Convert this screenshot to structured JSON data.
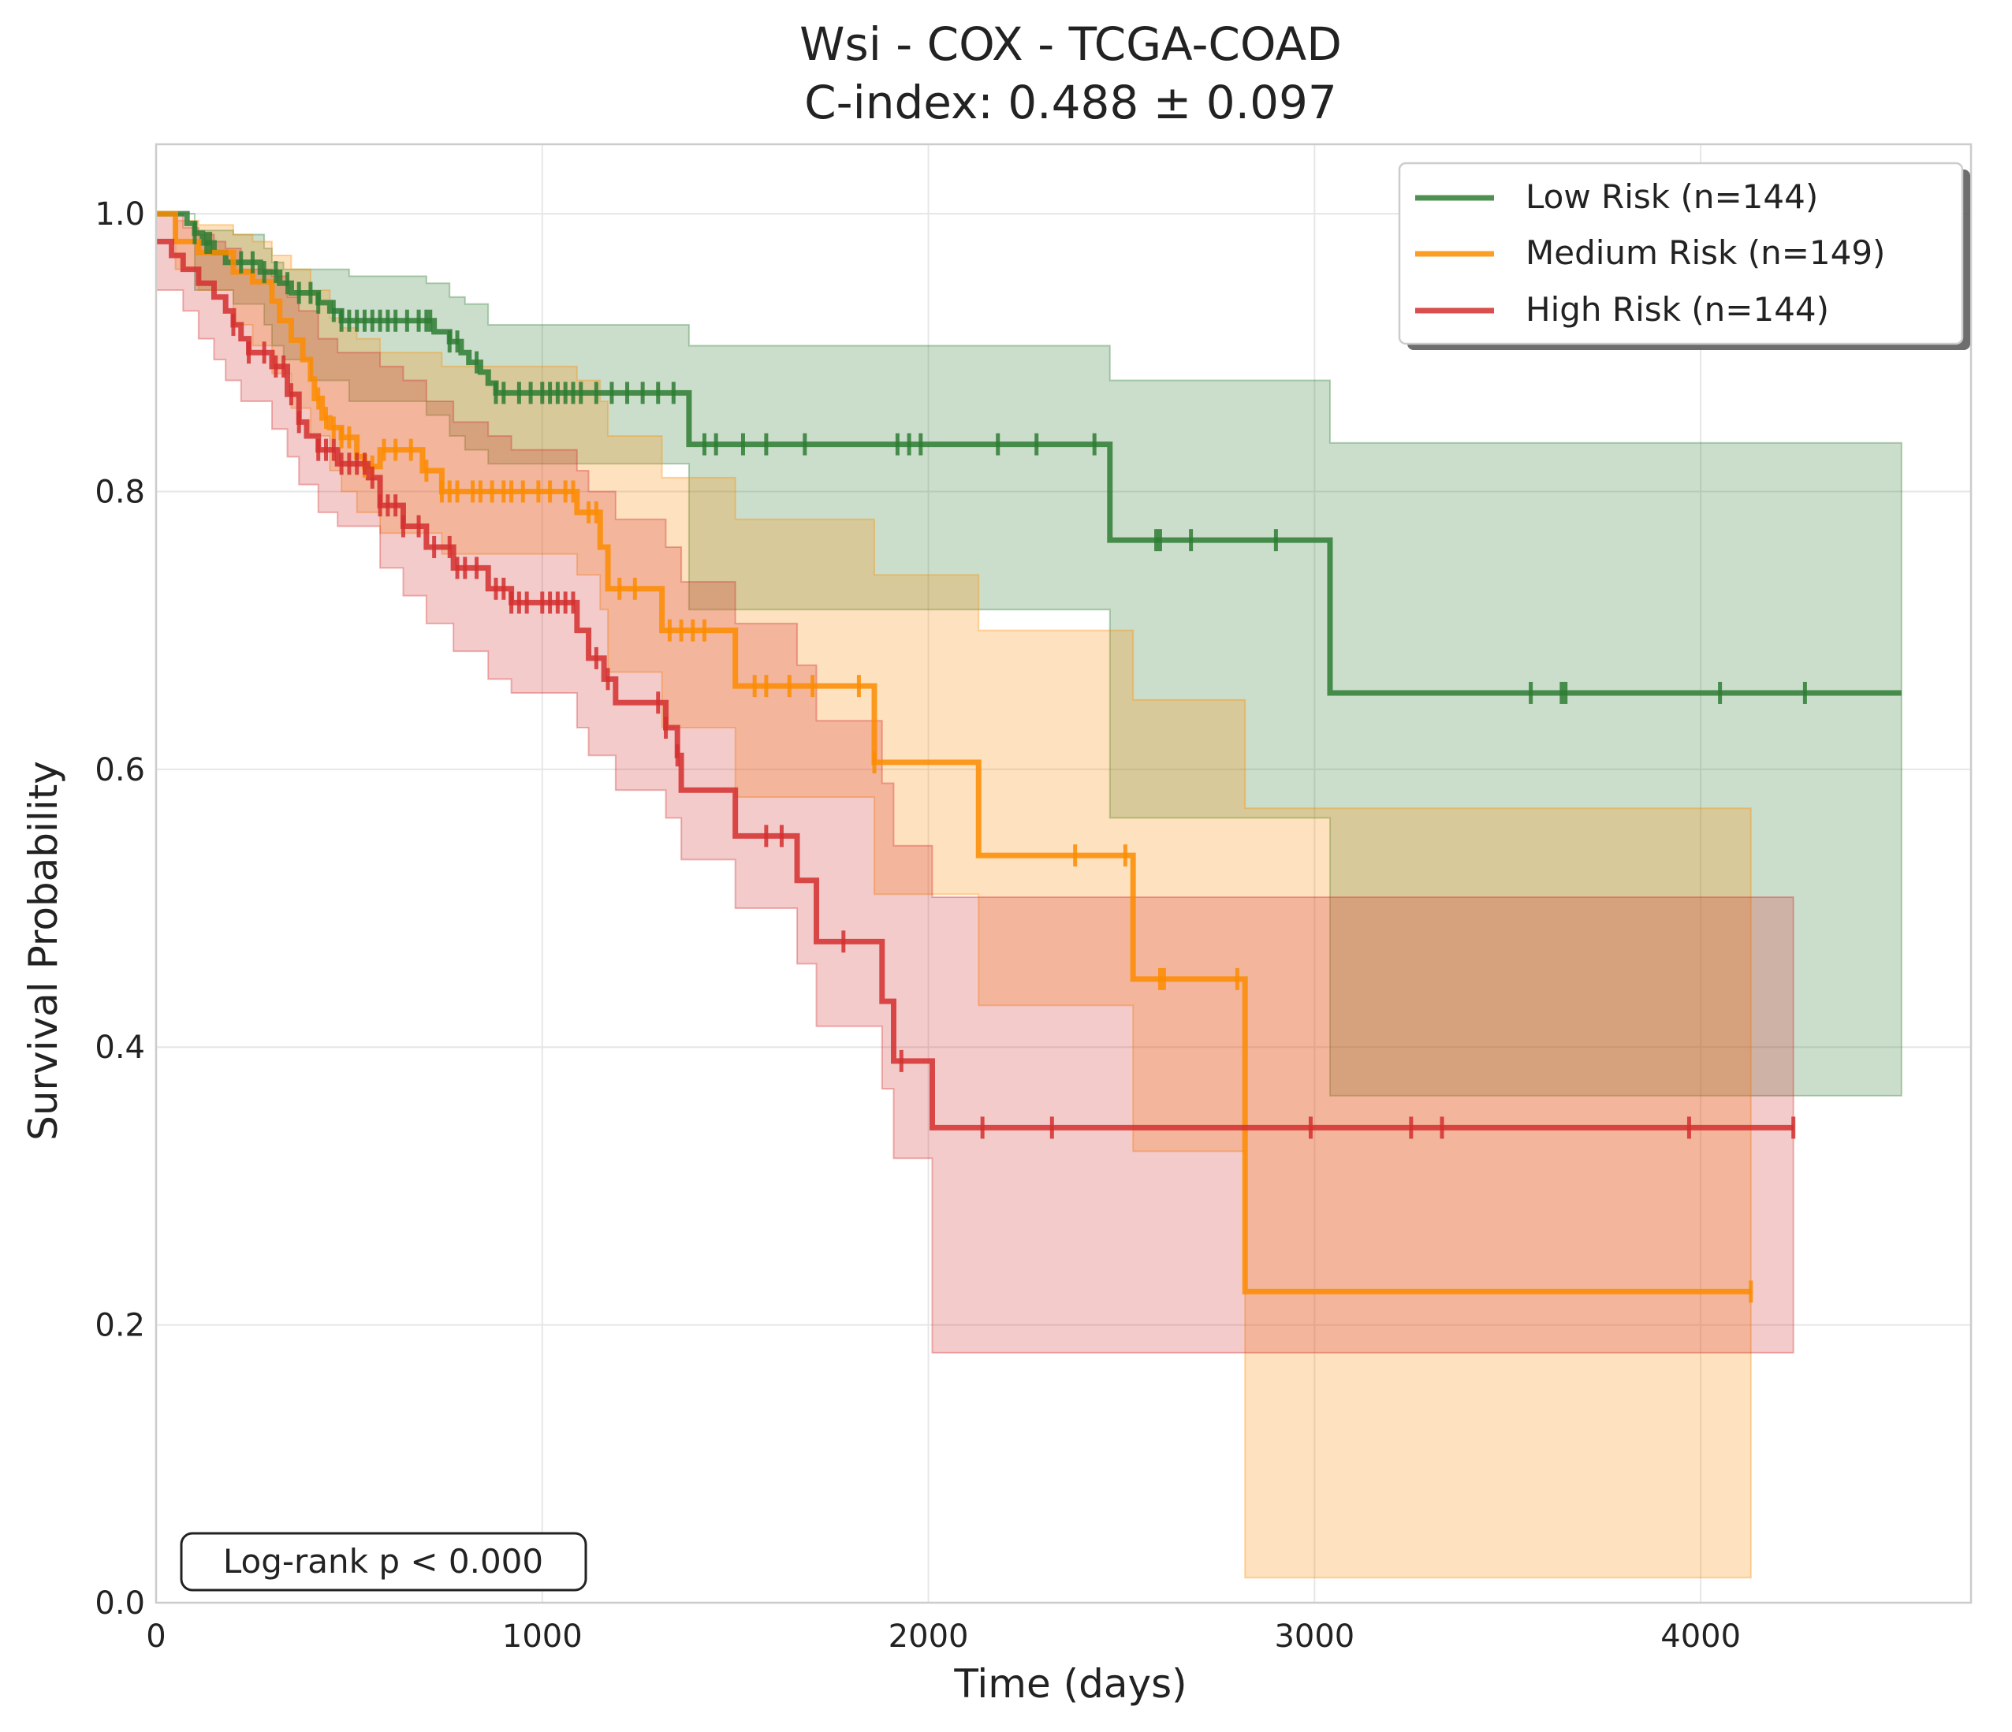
{
  "chart_data": {
    "type": "line",
    "title_line1": "Wsi - COX - TCGA-COAD",
    "title_line2": "C-index: 0.488 ± 0.097",
    "xlabel": "Time (days)",
    "ylabel": "Survival Probability",
    "xlim": [
      0,
      4700
    ],
    "ylim": [
      0,
      1.05
    ],
    "x_ticks": [
      0,
      1000,
      2000,
      3000,
      4000
    ],
    "x_tick_labels": [
      "0",
      "1000",
      "2000",
      "3000",
      "4000"
    ],
    "y_ticks": [
      0,
      0.2,
      0.4,
      0.6,
      0.8,
      1.0
    ],
    "y_tick_labels": [
      "0.0",
      "0.2",
      "0.4",
      "0.6",
      "0.8",
      "1.0"
    ],
    "grid": true,
    "legend_position": "top-right",
    "annotation": "Log-rank p < 0.000",
    "series": [
      {
        "name": "Low Risk (n=144)",
        "color": "#2e7d32",
        "steps": [
          [
            0,
            1.0
          ],
          [
            80,
            0.993
          ],
          [
            100,
            0.986
          ],
          [
            120,
            0.979
          ],
          [
            150,
            0.972
          ],
          [
            180,
            0.965
          ],
          [
            270,
            0.958
          ],
          [
            320,
            0.95
          ],
          [
            350,
            0.943
          ],
          [
            420,
            0.936
          ],
          [
            450,
            0.93
          ],
          [
            480,
            0.923
          ],
          [
            720,
            0.915
          ],
          [
            760,
            0.908
          ],
          [
            790,
            0.9
          ],
          [
            810,
            0.893
          ],
          [
            840,
            0.886
          ],
          [
            860,
            0.878
          ],
          [
            880,
            0.871
          ],
          [
            1380,
            0.834
          ],
          [
            2470,
            0.765
          ],
          [
            3040,
            0.655
          ]
        ],
        "end": 4520,
        "censors": [
          100,
          130,
          140,
          220,
          250,
          280,
          310,
          340,
          370,
          400,
          420,
          460,
          480,
          500,
          520,
          540,
          560,
          580,
          600,
          620,
          650,
          680,
          700,
          710,
          760,
          780,
          830,
          880,
          900,
          940,
          970,
          1000,
          1020,
          1040,
          1060,
          1080,
          1100,
          1140,
          1180,
          1220,
          1260,
          1300,
          1340,
          1420,
          1450,
          1520,
          1580,
          1680,
          1920,
          1950,
          1980,
          2180,
          2280,
          2430,
          2590,
          2600,
          2680,
          2900,
          3560,
          3640,
          3650,
          4050,
          4270
        ]
      },
      {
        "name": "Medium Risk (n=149)",
        "color": "#fb8c00",
        "steps": [
          [
            0,
            1.0
          ],
          [
            50,
            0.98
          ],
          [
            110,
            0.972
          ],
          [
            200,
            0.958
          ],
          [
            250,
            0.951
          ],
          [
            300,
            0.937
          ],
          [
            320,
            0.923
          ],
          [
            350,
            0.909
          ],
          [
            380,
            0.895
          ],
          [
            400,
            0.881
          ],
          [
            410,
            0.867
          ],
          [
            430,
            0.853
          ],
          [
            450,
            0.846
          ],
          [
            480,
            0.839
          ],
          [
            520,
            0.825
          ],
          [
            540,
            0.818
          ],
          [
            580,
            0.83
          ],
          [
            690,
            0.815
          ],
          [
            740,
            0.8
          ],
          [
            1090,
            0.785
          ],
          [
            1150,
            0.76
          ],
          [
            1170,
            0.73
          ],
          [
            1310,
            0.7
          ],
          [
            1500,
            0.66
          ],
          [
            1860,
            0.605
          ],
          [
            2130,
            0.538
          ],
          [
            2530,
            0.449
          ],
          [
            2820,
            0.224
          ]
        ],
        "end": 4130,
        "censors": [
          420,
          440,
          460,
          480,
          500,
          540,
          560,
          590,
          620,
          660,
          700,
          740,
          760,
          780,
          820,
          840,
          870,
          900,
          920,
          950,
          990,
          1020,
          1060,
          1080,
          1120,
          1140,
          1200,
          1240,
          1330,
          1360,
          1390,
          1420,
          1550,
          1580,
          1640,
          1700,
          1820,
          1860,
          2380,
          2510,
          2600,
          2610,
          2800,
          4130
        ]
      },
      {
        "name": "High Risk (n=144)",
        "color": "#d32f2f",
        "steps": [
          [
            0,
            0.98
          ],
          [
            40,
            0.97
          ],
          [
            70,
            0.96
          ],
          [
            110,
            0.95
          ],
          [
            150,
            0.94
          ],
          [
            180,
            0.93
          ],
          [
            200,
            0.92
          ],
          [
            220,
            0.91
          ],
          [
            240,
            0.9
          ],
          [
            300,
            0.89
          ],
          [
            340,
            0.87
          ],
          [
            370,
            0.85
          ],
          [
            390,
            0.84
          ],
          [
            420,
            0.83
          ],
          [
            470,
            0.82
          ],
          [
            550,
            0.81
          ],
          [
            580,
            0.79
          ],
          [
            640,
            0.775
          ],
          [
            700,
            0.76
          ],
          [
            770,
            0.745
          ],
          [
            860,
            0.73
          ],
          [
            920,
            0.72
          ],
          [
            1090,
            0.7
          ],
          [
            1120,
            0.68
          ],
          [
            1160,
            0.665
          ],
          [
            1190,
            0.648
          ],
          [
            1320,
            0.63
          ],
          [
            1350,
            0.61
          ],
          [
            1360,
            0.585
          ],
          [
            1500,
            0.552
          ],
          [
            1660,
            0.52
          ],
          [
            1710,
            0.476
          ],
          [
            1880,
            0.433
          ],
          [
            1910,
            0.39
          ],
          [
            2010,
            0.342
          ]
        ],
        "end": 4240,
        "censors": [
          200,
          240,
          280,
          310,
          330,
          350,
          370,
          420,
          440,
          460,
          480,
          500,
          520,
          540,
          560,
          580,
          600,
          620,
          640,
          680,
          720,
          760,
          780,
          800,
          830,
          880,
          900,
          920,
          940,
          960,
          1000,
          1020,
          1040,
          1060,
          1080,
          1140,
          1170,
          1300,
          1320,
          1350,
          1580,
          1620,
          1780,
          1930,
          2140,
          2320,
          2990,
          3250,
          3330,
          3970,
          4240
        ]
      }
    ],
    "bands": [
      {
        "series": "Low Risk (n=144)",
        "color": "#2e7d32",
        "steps": [
          [
            0,
            1.0,
            1.0
          ],
          [
            100,
            0.988,
            0.945
          ],
          [
            200,
            0.985,
            0.935
          ],
          [
            280,
            0.975,
            0.92
          ],
          [
            300,
            0.965,
            0.905
          ],
          [
            330,
            0.96,
            0.895
          ],
          [
            400,
            0.96,
            0.88
          ],
          [
            500,
            0.955,
            0.865
          ],
          [
            700,
            0.95,
            0.855
          ],
          [
            760,
            0.94,
            0.84
          ],
          [
            800,
            0.935,
            0.83
          ],
          [
            860,
            0.92,
            0.82
          ],
          [
            1380,
            0.905,
            0.715
          ],
          [
            2470,
            0.88,
            0.565
          ],
          [
            3040,
            0.835,
            0.365
          ]
        ],
        "end": 4520
      },
      {
        "series": "Medium Risk (n=149)",
        "color": "#fb8c00",
        "steps": [
          [
            0,
            1.0,
            1.0
          ],
          [
            50,
            0.995,
            0.96
          ],
          [
            110,
            0.992,
            0.945
          ],
          [
            200,
            0.985,
            0.92
          ],
          [
            250,
            0.98,
            0.905
          ],
          [
            300,
            0.97,
            0.885
          ],
          [
            350,
            0.96,
            0.86
          ],
          [
            400,
            0.945,
            0.84
          ],
          [
            450,
            0.925,
            0.815
          ],
          [
            480,
            0.918,
            0.8
          ],
          [
            520,
            0.91,
            0.785
          ],
          [
            580,
            0.9,
            0.77
          ],
          [
            740,
            0.89,
            0.755
          ],
          [
            1090,
            0.88,
            0.74
          ],
          [
            1150,
            0.865,
            0.715
          ],
          [
            1170,
            0.84,
            0.67
          ],
          [
            1310,
            0.81,
            0.63
          ],
          [
            1500,
            0.78,
            0.58
          ],
          [
            1860,
            0.74,
            0.51
          ],
          [
            2130,
            0.7,
            0.43
          ],
          [
            2530,
            0.65,
            0.325
          ],
          [
            2820,
            0.572,
            0.018
          ]
        ],
        "end": 4130
      },
      {
        "series": "High Risk (n=144)",
        "color": "#d32f2f",
        "steps": [
          [
            0,
            1.0,
            0.945
          ],
          [
            70,
            0.99,
            0.93
          ],
          [
            110,
            0.985,
            0.91
          ],
          [
            150,
            0.98,
            0.895
          ],
          [
            180,
            0.975,
            0.88
          ],
          [
            220,
            0.96,
            0.865
          ],
          [
            300,
            0.955,
            0.845
          ],
          [
            340,
            0.94,
            0.825
          ],
          [
            370,
            0.93,
            0.805
          ],
          [
            420,
            0.91,
            0.785
          ],
          [
            470,
            0.9,
            0.775
          ],
          [
            580,
            0.89,
            0.745
          ],
          [
            640,
            0.88,
            0.725
          ],
          [
            700,
            0.865,
            0.705
          ],
          [
            770,
            0.85,
            0.685
          ],
          [
            860,
            0.84,
            0.665
          ],
          [
            920,
            0.83,
            0.655
          ],
          [
            1090,
            0.815,
            0.63
          ],
          [
            1120,
            0.8,
            0.61
          ],
          [
            1190,
            0.78,
            0.585
          ],
          [
            1320,
            0.76,
            0.565
          ],
          [
            1360,
            0.735,
            0.535
          ],
          [
            1500,
            0.705,
            0.5
          ],
          [
            1660,
            0.675,
            0.46
          ],
          [
            1710,
            0.635,
            0.415
          ],
          [
            1880,
            0.59,
            0.37
          ],
          [
            1910,
            0.545,
            0.32
          ],
          [
            2010,
            0.508,
            0.18
          ]
        ],
        "end": 4240
      }
    ]
  }
}
